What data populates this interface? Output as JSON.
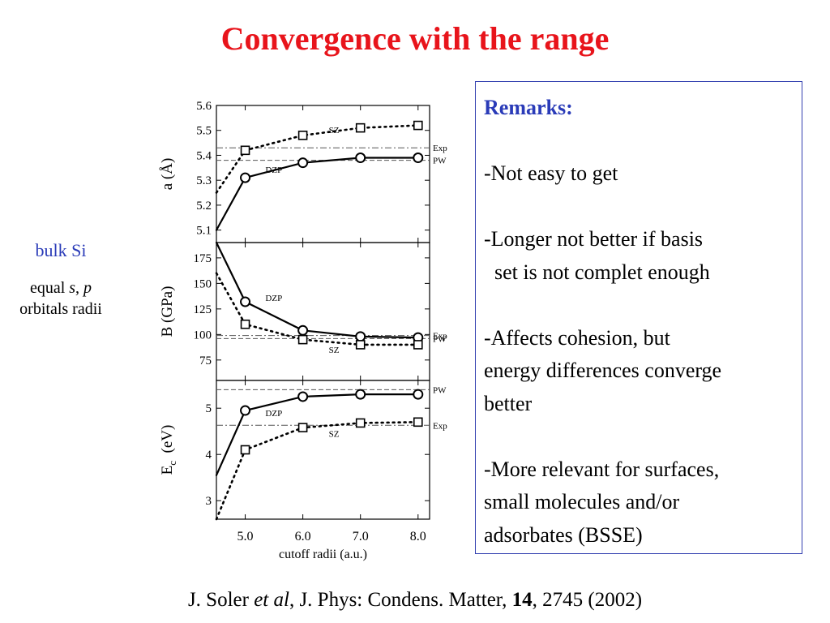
{
  "slide": {
    "title": "Convergence with the range",
    "left_note": {
      "system": "bulk Si",
      "line1_plain": "equal ",
      "line1_s": "s",
      "line1_comma": ", ",
      "line1_p": "p",
      "line2": "orbitals radii"
    },
    "remarks": {
      "title": "Remarks:",
      "items": [
        "",
        "-Not easy to get",
        "",
        "-Longer not better if basis",
        "  set is not complet enough",
        "",
        "-Affects cohesion, but",
        "energy differences converge",
        "better",
        "",
        "-More relevant for surfaces,",
        "small molecules and/or",
        "adsorbates (BSSE)"
      ]
    },
    "citation": {
      "author": "J. Soler ",
      "etal": "et al",
      "journal": ", J. Phys: Condens. Matter, ",
      "volume": "14",
      "rest": ", 2745 (2002)"
    }
  },
  "chart_data": {
    "type": "line",
    "xlabel": "cutoff radii (a.u.)",
    "x_ticks": [
      "5.0",
      "6.0",
      "7.0",
      "8.0"
    ],
    "xlim": [
      4.5,
      8.2
    ],
    "panels": [
      {
        "ylabel": "a (Å)",
        "ylim": [
          5.05,
          5.6
        ],
        "y_ticks": [
          5.1,
          5.2,
          5.3,
          5.4,
          5.5,
          5.6
        ],
        "y_tick_labels": [
          "5.1",
          "5.2",
          "5.3",
          "5.4",
          "5.5",
          "5.6"
        ],
        "series": [
          {
            "name": "DZP",
            "marker": "circle",
            "style": "solid",
            "x": [
              4.5,
              5.0,
              6.0,
              7.0,
              8.0
            ],
            "y": [
              5.1,
              5.31,
              5.37,
              5.39,
              5.39
            ],
            "markers_from": 1
          },
          {
            "name": "SZ",
            "marker": "square",
            "style": "dotted",
            "x": [
              4.5,
              5.0,
              6.0,
              7.0,
              8.0
            ],
            "y": [
              5.25,
              5.42,
              5.48,
              5.51,
              5.52
            ],
            "markers_from": 1
          }
        ],
        "refs": [
          {
            "name": "Exp",
            "y": 5.43,
            "style": "dashdot"
          },
          {
            "name": "PW",
            "y": 5.38,
            "style": "dashed"
          }
        ]
      },
      {
        "ylabel": "B (GPa)",
        "ylim": [
          55,
          190
        ],
        "y_ticks": [
          75,
          100,
          125,
          150,
          175
        ],
        "y_tick_labels": [
          "75",
          "100",
          "125",
          "150",
          "175"
        ],
        "series": [
          {
            "name": "DZP",
            "marker": "circle",
            "style": "solid",
            "x": [
              4.5,
              5.0,
              6.0,
              7.0,
              8.0
            ],
            "y": [
              190,
              132,
              104,
              98,
              97
            ],
            "markers_from": 1
          },
          {
            "name": "SZ",
            "marker": "square",
            "style": "dotted",
            "x": [
              4.5,
              5.0,
              6.0,
              7.0,
              8.0
            ],
            "y": [
              160,
              110,
              95,
              90,
              90
            ],
            "markers_from": 1
          }
        ],
        "refs": [
          {
            "name": "Exp",
            "y": 99,
            "style": "dashdot"
          },
          {
            "name": "PW",
            "y": 96,
            "style": "dashed"
          }
        ]
      },
      {
        "ylabel": "E",
        "ylabel_sub": "c",
        "ylabel_unit": "(eV)",
        "ylim": [
          2.6,
          5.6
        ],
        "y_ticks": [
          3,
          4,
          5
        ],
        "y_tick_labels": [
          "3",
          "4",
          "5"
        ],
        "series": [
          {
            "name": "DZP",
            "marker": "circle",
            "style": "solid",
            "x": [
              4.5,
              5.0,
              6.0,
              7.0,
              8.0
            ],
            "y": [
              3.55,
              4.95,
              5.25,
              5.3,
              5.3
            ],
            "markers_from": 1
          },
          {
            "name": "SZ",
            "marker": "square",
            "style": "dotted",
            "x": [
              4.5,
              5.0,
              6.0,
              7.0,
              8.0
            ],
            "y": [
              2.6,
              4.1,
              4.58,
              4.68,
              4.7
            ],
            "markers_from": 1
          }
        ],
        "refs": [
          {
            "name": "PW",
            "y": 5.4,
            "style": "dashed"
          },
          {
            "name": "Exp",
            "y": 4.63,
            "style": "dashdot"
          }
        ]
      }
    ]
  }
}
